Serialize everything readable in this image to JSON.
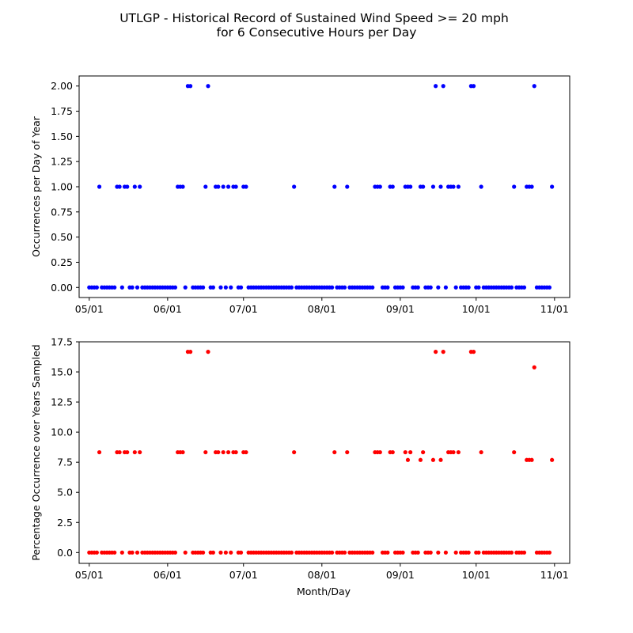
{
  "figure": {
    "title_line1": "UTLGP - Historical Record of Sustained Wind Speed >= 20 mph",
    "title_line2": "for 6 Consecutive Hours per Day"
  },
  "chart_data": [
    {
      "type": "scatter",
      "title": "",
      "xlabel": "",
      "ylabel": "Occurrences per Day of Year",
      "color": "#0000ff",
      "x_type": "date",
      "xlim": [
        "04-27",
        "11-07"
      ],
      "ylim": [
        -0.1,
        2.1
      ],
      "x_ticks": [
        "05/01",
        "06/01",
        "07/01",
        "08/01",
        "09/01",
        "10/01",
        "11/01"
      ],
      "y_ticks": [
        "0.00",
        "0.25",
        "0.50",
        "0.75",
        "1.00",
        "1.25",
        "1.50",
        "1.75",
        "2.00"
      ],
      "nonzero_points": [
        {
          "x": "05-05",
          "y": 1
        },
        {
          "x": "05-12",
          "y": 1
        },
        {
          "x": "05-13",
          "y": 1
        },
        {
          "x": "05-15",
          "y": 1
        },
        {
          "x": "05-16",
          "y": 1
        },
        {
          "x": "05-19",
          "y": 1
        },
        {
          "x": "05-21",
          "y": 1
        },
        {
          "x": "06-05",
          "y": 1
        },
        {
          "x": "06-06",
          "y": 1
        },
        {
          "x": "06-07",
          "y": 1
        },
        {
          "x": "06-09",
          "y": 2
        },
        {
          "x": "06-10",
          "y": 2
        },
        {
          "x": "06-16",
          "y": 1
        },
        {
          "x": "06-17",
          "y": 2
        },
        {
          "x": "06-20",
          "y": 1
        },
        {
          "x": "06-21",
          "y": 1
        },
        {
          "x": "06-23",
          "y": 1
        },
        {
          "x": "06-25",
          "y": 1
        },
        {
          "x": "06-27",
          "y": 1
        },
        {
          "x": "06-28",
          "y": 1
        },
        {
          "x": "07-01",
          "y": 1
        },
        {
          "x": "07-02",
          "y": 1
        },
        {
          "x": "07-21",
          "y": 1
        },
        {
          "x": "08-06",
          "y": 1
        },
        {
          "x": "08-11",
          "y": 1
        },
        {
          "x": "08-22",
          "y": 1
        },
        {
          "x": "08-23",
          "y": 1
        },
        {
          "x": "08-24",
          "y": 1
        },
        {
          "x": "08-28",
          "y": 1
        },
        {
          "x": "08-29",
          "y": 1
        },
        {
          "x": "09-03",
          "y": 1
        },
        {
          "x": "09-04",
          "y": 1
        },
        {
          "x": "09-05",
          "y": 1
        },
        {
          "x": "09-09",
          "y": 1
        },
        {
          "x": "09-10",
          "y": 1
        },
        {
          "x": "09-14",
          "y": 1
        },
        {
          "x": "09-15",
          "y": 2
        },
        {
          "x": "09-17",
          "y": 1
        },
        {
          "x": "09-18",
          "y": 2
        },
        {
          "x": "09-20",
          "y": 1
        },
        {
          "x": "09-21",
          "y": 1
        },
        {
          "x": "09-22",
          "y": 1
        },
        {
          "x": "09-24",
          "y": 1
        },
        {
          "x": "09-29",
          "y": 2
        },
        {
          "x": "09-30",
          "y": 2
        },
        {
          "x": "10-03",
          "y": 1
        },
        {
          "x": "10-16",
          "y": 1
        },
        {
          "x": "10-21",
          "y": 1
        },
        {
          "x": "10-22",
          "y": 1
        },
        {
          "x": "10-23",
          "y": 1
        },
        {
          "x": "10-24",
          "y": 2
        },
        {
          "x": "10-31",
          "y": 1
        }
      ],
      "zero_days": [
        "05-01",
        "05-02",
        "05-03",
        "05-04",
        "05-06",
        "05-07",
        "05-08",
        "05-09",
        "05-10",
        "05-11",
        "05-14",
        "05-17",
        "05-18",
        "05-20",
        "05-22",
        "05-23",
        "05-24",
        "05-25",
        "05-26",
        "05-27",
        "05-28",
        "05-29",
        "05-30",
        "05-31",
        "06-01",
        "06-02",
        "06-03",
        "06-04",
        "06-08",
        "06-11",
        "06-12",
        "06-13",
        "06-14",
        "06-15",
        "06-18",
        "06-19",
        "06-22",
        "06-24",
        "06-26",
        "06-29",
        "06-30",
        "07-03",
        "07-04",
        "07-05",
        "07-06",
        "07-07",
        "07-08",
        "07-09",
        "07-10",
        "07-11",
        "07-12",
        "07-13",
        "07-14",
        "07-15",
        "07-16",
        "07-17",
        "07-18",
        "07-19",
        "07-20",
        "07-22",
        "07-23",
        "07-24",
        "07-25",
        "07-26",
        "07-27",
        "07-28",
        "07-29",
        "07-30",
        "07-31",
        "08-01",
        "08-02",
        "08-03",
        "08-04",
        "08-05",
        "08-07",
        "08-08",
        "08-09",
        "08-10",
        "08-12",
        "08-13",
        "08-14",
        "08-15",
        "08-16",
        "08-17",
        "08-18",
        "08-19",
        "08-20",
        "08-21",
        "08-25",
        "08-26",
        "08-27",
        "08-30",
        "08-31",
        "09-01",
        "09-02",
        "09-06",
        "09-07",
        "09-08",
        "09-11",
        "09-12",
        "09-13",
        "09-16",
        "09-19",
        "09-23",
        "09-25",
        "09-26",
        "09-27",
        "09-28",
        "10-01",
        "10-02",
        "10-04",
        "10-05",
        "10-06",
        "10-07",
        "10-08",
        "10-09",
        "10-10",
        "10-11",
        "10-12",
        "10-13",
        "10-14",
        "10-15",
        "10-17",
        "10-18",
        "10-19",
        "10-20",
        "10-25",
        "10-26",
        "10-27",
        "10-28",
        "10-29",
        "10-30"
      ]
    },
    {
      "type": "scatter",
      "title": "",
      "xlabel": "Month/Day",
      "ylabel": "Percentage Occurrence over Years Sampled",
      "color": "#ff0000",
      "x_type": "date",
      "xlim": [
        "04-27",
        "11-07"
      ],
      "ylim": [
        -0.9,
        17.5
      ],
      "x_ticks": [
        "05/01",
        "06/01",
        "07/01",
        "08/01",
        "09/01",
        "10/01",
        "11/01"
      ],
      "y_ticks": [
        "0.0",
        "2.5",
        "5.0",
        "7.5",
        "10.0",
        "12.5",
        "15.0",
        "17.5"
      ],
      "nonzero_points": [
        {
          "x": "05-05",
          "y": 8.33
        },
        {
          "x": "05-12",
          "y": 8.33
        },
        {
          "x": "05-13",
          "y": 8.33
        },
        {
          "x": "05-15",
          "y": 8.33
        },
        {
          "x": "05-16",
          "y": 8.33
        },
        {
          "x": "05-19",
          "y": 8.33
        },
        {
          "x": "05-21",
          "y": 8.33
        },
        {
          "x": "06-05",
          "y": 8.33
        },
        {
          "x": "06-06",
          "y": 8.33
        },
        {
          "x": "06-07",
          "y": 8.33
        },
        {
          "x": "06-09",
          "y": 16.67
        },
        {
          "x": "06-10",
          "y": 16.67
        },
        {
          "x": "06-16",
          "y": 8.33
        },
        {
          "x": "06-17",
          "y": 16.67
        },
        {
          "x": "06-20",
          "y": 8.33
        },
        {
          "x": "06-21",
          "y": 8.33
        },
        {
          "x": "06-23",
          "y": 8.33
        },
        {
          "x": "06-25",
          "y": 8.33
        },
        {
          "x": "06-27",
          "y": 8.33
        },
        {
          "x": "06-28",
          "y": 8.33
        },
        {
          "x": "07-01",
          "y": 8.33
        },
        {
          "x": "07-02",
          "y": 8.33
        },
        {
          "x": "07-21",
          "y": 8.33
        },
        {
          "x": "08-06",
          "y": 8.33
        },
        {
          "x": "08-11",
          "y": 8.33
        },
        {
          "x": "08-22",
          "y": 8.33
        },
        {
          "x": "08-23",
          "y": 8.33
        },
        {
          "x": "08-24",
          "y": 8.33
        },
        {
          "x": "08-28",
          "y": 8.33
        },
        {
          "x": "08-29",
          "y": 8.33
        },
        {
          "x": "09-03",
          "y": 8.33
        },
        {
          "x": "09-04",
          "y": 7.69
        },
        {
          "x": "09-05",
          "y": 8.33
        },
        {
          "x": "09-09",
          "y": 7.69
        },
        {
          "x": "09-10",
          "y": 8.33
        },
        {
          "x": "09-14",
          "y": 7.69
        },
        {
          "x": "09-15",
          "y": 16.67
        },
        {
          "x": "09-17",
          "y": 7.69
        },
        {
          "x": "09-18",
          "y": 16.67
        },
        {
          "x": "09-20",
          "y": 8.33
        },
        {
          "x": "09-21",
          "y": 8.33
        },
        {
          "x": "09-22",
          "y": 8.33
        },
        {
          "x": "09-24",
          "y": 8.33
        },
        {
          "x": "09-29",
          "y": 16.67
        },
        {
          "x": "09-30",
          "y": 16.67
        },
        {
          "x": "10-03",
          "y": 8.33
        },
        {
          "x": "10-16",
          "y": 8.33
        },
        {
          "x": "10-21",
          "y": 7.69
        },
        {
          "x": "10-22",
          "y": 7.69
        },
        {
          "x": "10-23",
          "y": 7.69
        },
        {
          "x": "10-24",
          "y": 15.38
        },
        {
          "x": "10-31",
          "y": 7.69
        }
      ],
      "zero_days": [
        "05-01",
        "05-02",
        "05-03",
        "05-04",
        "05-06",
        "05-07",
        "05-08",
        "05-09",
        "05-10",
        "05-11",
        "05-14",
        "05-17",
        "05-18",
        "05-20",
        "05-22",
        "05-23",
        "05-24",
        "05-25",
        "05-26",
        "05-27",
        "05-28",
        "05-29",
        "05-30",
        "05-31",
        "06-01",
        "06-02",
        "06-03",
        "06-04",
        "06-08",
        "06-11",
        "06-12",
        "06-13",
        "06-14",
        "06-15",
        "06-18",
        "06-19",
        "06-22",
        "06-24",
        "06-26",
        "06-29",
        "06-30",
        "07-03",
        "07-04",
        "07-05",
        "07-06",
        "07-07",
        "07-08",
        "07-09",
        "07-10",
        "07-11",
        "07-12",
        "07-13",
        "07-14",
        "07-15",
        "07-16",
        "07-17",
        "07-18",
        "07-19",
        "07-20",
        "07-22",
        "07-23",
        "07-24",
        "07-25",
        "07-26",
        "07-27",
        "07-28",
        "07-29",
        "07-30",
        "07-31",
        "08-01",
        "08-02",
        "08-03",
        "08-04",
        "08-05",
        "08-07",
        "08-08",
        "08-09",
        "08-10",
        "08-12",
        "08-13",
        "08-14",
        "08-15",
        "08-16",
        "08-17",
        "08-18",
        "08-19",
        "08-20",
        "08-21",
        "08-25",
        "08-26",
        "08-27",
        "08-30",
        "08-31",
        "09-01",
        "09-02",
        "09-06",
        "09-07",
        "09-08",
        "09-11",
        "09-12",
        "09-13",
        "09-16",
        "09-19",
        "09-23",
        "09-25",
        "09-26",
        "09-27",
        "09-28",
        "10-01",
        "10-02",
        "10-04",
        "10-05",
        "10-06",
        "10-07",
        "10-08",
        "10-09",
        "10-10",
        "10-11",
        "10-12",
        "10-13",
        "10-14",
        "10-15",
        "10-17",
        "10-18",
        "10-19",
        "10-20",
        "10-25",
        "10-26",
        "10-27",
        "10-28",
        "10-29",
        "10-30"
      ]
    }
  ]
}
